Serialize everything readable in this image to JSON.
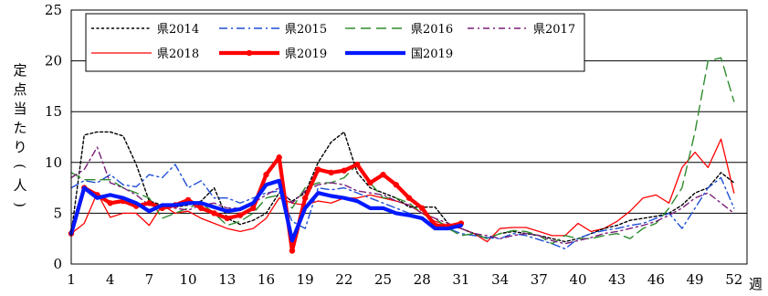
{
  "chart_data": {
    "type": "line",
    "ylabel_chars": [
      "定",
      "点",
      "当",
      "た",
      "り",
      "(",
      "人",
      ")"
    ],
    "xlabel": "週",
    "xlim": [
      1,
      53
    ],
    "ylim": [
      0,
      25
    ],
    "yticks": [
      0,
      5,
      10,
      15,
      20,
      25
    ],
    "xticks": [
      1,
      4,
      7,
      10,
      13,
      16,
      19,
      22,
      25,
      28,
      31,
      34,
      37,
      40,
      43,
      46,
      49,
      52
    ],
    "grid": "horizontal",
    "legend_placement": "top-left",
    "series": [
      {
        "name": "県2014",
        "color": "#000000",
        "style": "dotted",
        "width": 1.4,
        "markers": false,
        "x": [
          1,
          2,
          3,
          4,
          5,
          6,
          7,
          8,
          9,
          10,
          11,
          12,
          13,
          14,
          15,
          16,
          17,
          18,
          19,
          20,
          21,
          22,
          23,
          24,
          25,
          26,
          27,
          28,
          29,
          30,
          31,
          32,
          33,
          34,
          35,
          36,
          37,
          38,
          39,
          40,
          41,
          42,
          43,
          44,
          45,
          46,
          47,
          48,
          49,
          50,
          51,
          52
        ],
        "values": [
          3.0,
          12.7,
          13.0,
          13.0,
          12.6,
          9.8,
          6.2,
          5.8,
          5.6,
          5.8,
          6.2,
          7.5,
          4.5,
          3.9,
          4.3,
          5.0,
          7.0,
          6.2,
          7.0,
          10.0,
          12.0,
          13.0,
          9.0,
          7.5,
          7.0,
          6.5,
          5.6,
          5.6,
          5.6,
          4.0,
          3.5,
          3.0,
          2.5,
          3.0,
          3.2,
          3.0,
          2.8,
          2.5,
          2.2,
          2.5,
          3.0,
          3.5,
          3.8,
          4.3,
          4.5,
          4.7,
          5.0,
          5.8,
          7.0,
          7.5,
          9.0,
          8.0
        ]
      },
      {
        "name": "県2015",
        "color": "#1f4fd6",
        "style": "dashdot",
        "width": 1.4,
        "markers": false,
        "x": [
          1,
          2,
          3,
          4,
          5,
          6,
          7,
          8,
          9,
          10,
          11,
          12,
          13,
          14,
          15,
          16,
          17,
          18,
          19,
          20,
          21,
          22,
          23,
          24,
          25,
          26,
          27,
          28,
          29,
          30,
          31,
          32,
          33,
          34,
          35,
          36,
          37,
          38,
          39,
          40,
          41,
          42,
          43,
          44,
          45,
          46,
          47,
          48,
          49,
          50,
          51,
          52
        ],
        "values": [
          7.5,
          8.2,
          8.0,
          8.8,
          7.8,
          7.6,
          8.8,
          8.5,
          9.8,
          7.5,
          8.2,
          6.5,
          6.5,
          6.0,
          6.5,
          7.0,
          7.2,
          4.2,
          3.5,
          7.5,
          7.3,
          7.5,
          7.0,
          6.5,
          6.0,
          5.5,
          5.0,
          4.5,
          4.0,
          3.5,
          3.0,
          2.8,
          2.6,
          2.5,
          3.0,
          2.8,
          2.4,
          2.0,
          1.5,
          2.5,
          3.0,
          3.3,
          3.5,
          3.8,
          4.0,
          4.5,
          5.0,
          3.5,
          5.5,
          7.5,
          8.5,
          5.5
        ]
      },
      {
        "name": "県2016",
        "color": "#2e8b2e",
        "style": "longdash",
        "width": 1.4,
        "markers": false,
        "x": [
          1,
          2,
          3,
          4,
          5,
          6,
          7,
          8,
          9,
          10,
          11,
          12,
          13,
          14,
          15,
          16,
          17,
          18,
          19,
          20,
          21,
          22,
          23,
          24,
          25,
          26,
          27,
          28,
          29,
          30,
          31,
          32,
          33,
          34,
          35,
          36,
          37,
          38,
          39,
          40,
          41,
          42,
          43,
          44,
          45,
          46,
          47,
          48,
          49,
          50,
          51,
          52
        ],
        "values": [
          9.0,
          8.3,
          8.3,
          8.3,
          7.5,
          7.0,
          6.5,
          4.5,
          5.0,
          5.5,
          6.0,
          5.0,
          3.8,
          4.2,
          5.0,
          6.5,
          6.8,
          5.5,
          7.5,
          8.0,
          8.0,
          8.5,
          9.8,
          8.0,
          6.5,
          6.5,
          6.0,
          5.0,
          4.5,
          3.5,
          2.8,
          3.0,
          2.5,
          3.0,
          3.3,
          3.2,
          2.8,
          2.0,
          2.8,
          2.5,
          2.5,
          2.8,
          3.0,
          2.5,
          3.5,
          4.0,
          5.5,
          7.5,
          13.0,
          20.0,
          20.3,
          16.0
        ]
      },
      {
        "name": "県2017",
        "color": "#7a1f7a",
        "style": "dashdot2",
        "width": 1.4,
        "markers": false,
        "x": [
          1,
          2,
          3,
          4,
          5,
          6,
          7,
          8,
          9,
          10,
          11,
          12,
          13,
          14,
          15,
          16,
          17,
          18,
          19,
          20,
          21,
          22,
          23,
          24,
          25,
          26,
          27,
          28,
          29,
          30,
          31,
          32,
          33,
          34,
          35,
          36,
          37,
          38,
          39,
          40,
          41,
          42,
          43,
          44,
          45,
          46,
          47,
          48,
          49,
          50,
          51,
          52
        ],
        "values": [
          8.5,
          9.3,
          11.5,
          8.0,
          7.5,
          6.8,
          5.8,
          5.5,
          5.5,
          5.3,
          5.8,
          6.0,
          5.5,
          5.5,
          6.0,
          6.8,
          7.5,
          6.0,
          7.2,
          7.8,
          8.0,
          7.8,
          7.2,
          7.0,
          6.8,
          6.2,
          5.8,
          5.0,
          4.5,
          4.0,
          3.5,
          3.0,
          2.8,
          2.5,
          2.8,
          3.0,
          2.8,
          2.3,
          2.0,
          2.3,
          2.6,
          3.0,
          3.2,
          3.5,
          3.8,
          4.2,
          4.8,
          5.5,
          6.5,
          7.0,
          6.0,
          5.0
        ]
      },
      {
        "name": "県2018",
        "color": "#ff0000",
        "style": "solid",
        "width": 1.3,
        "markers": false,
        "x": [
          1,
          2,
          3,
          4,
          5,
          6,
          7,
          8,
          9,
          10,
          11,
          12,
          13,
          14,
          15,
          16,
          17,
          18,
          19,
          20,
          21,
          22,
          23,
          24,
          25,
          26,
          27,
          28,
          29,
          30,
          31,
          32,
          33,
          34,
          35,
          36,
          37,
          38,
          39,
          40,
          41,
          42,
          43,
          44,
          45,
          46,
          47,
          48,
          49,
          50,
          51,
          52
        ],
        "values": [
          3.0,
          4.0,
          7.0,
          4.6,
          5.0,
          5.0,
          3.8,
          5.8,
          5.0,
          5.2,
          4.5,
          4.0,
          3.5,
          3.2,
          3.5,
          4.5,
          6.5,
          6.0,
          5.8,
          6.2,
          6.0,
          6.5,
          6.5,
          6.8,
          6.5,
          6.2,
          5.8,
          5.0,
          4.2,
          3.8,
          3.5,
          3.0,
          2.2,
          3.5,
          3.6,
          3.6,
          3.2,
          2.8,
          2.8,
          4.0,
          3.2,
          3.5,
          4.2,
          5.2,
          6.5,
          6.8,
          6.0,
          9.5,
          11.0,
          9.5,
          12.3,
          7.0
        ]
      },
      {
        "name": "県2019",
        "color": "#ff0000",
        "style": "solid",
        "width": 4.2,
        "markers": true,
        "x": [
          1,
          2,
          3,
          4,
          5,
          6,
          7,
          8,
          9,
          10,
          11,
          12,
          13,
          14,
          15,
          16,
          17,
          18,
          19,
          20,
          21,
          22,
          23,
          24,
          25,
          26,
          27,
          28,
          29,
          30,
          31
        ],
        "values": [
          3.0,
          7.5,
          6.8,
          6.0,
          6.2,
          5.7,
          6.0,
          5.5,
          5.8,
          6.3,
          5.5,
          5.0,
          4.5,
          4.8,
          5.5,
          8.8,
          10.5,
          1.3,
          6.5,
          9.3,
          9.0,
          9.2,
          9.8,
          8.0,
          8.8,
          7.8,
          6.5,
          5.5,
          3.8,
          3.7,
          4.0
        ]
      },
      {
        "name": "国2019",
        "color": "#0019ff",
        "style": "solid",
        "width": 4.2,
        "markers": false,
        "x": [
          1,
          2,
          3,
          4,
          5,
          6,
          7,
          8,
          9,
          10,
          11,
          12,
          13,
          14,
          15,
          16,
          17,
          18,
          19,
          20,
          21,
          22,
          23,
          24,
          25,
          26,
          27,
          28,
          29,
          30,
          31
        ],
        "values": [
          3.0,
          7.5,
          6.5,
          6.8,
          6.5,
          6.0,
          5.2,
          5.8,
          5.8,
          6.0,
          6.0,
          5.6,
          5.2,
          5.4,
          6.0,
          7.8,
          8.2,
          2.3,
          5.5,
          7.0,
          6.7,
          6.5,
          6.2,
          5.5,
          5.5,
          5.0,
          4.8,
          4.5,
          3.5,
          3.5,
          3.8
        ]
      }
    ]
  }
}
